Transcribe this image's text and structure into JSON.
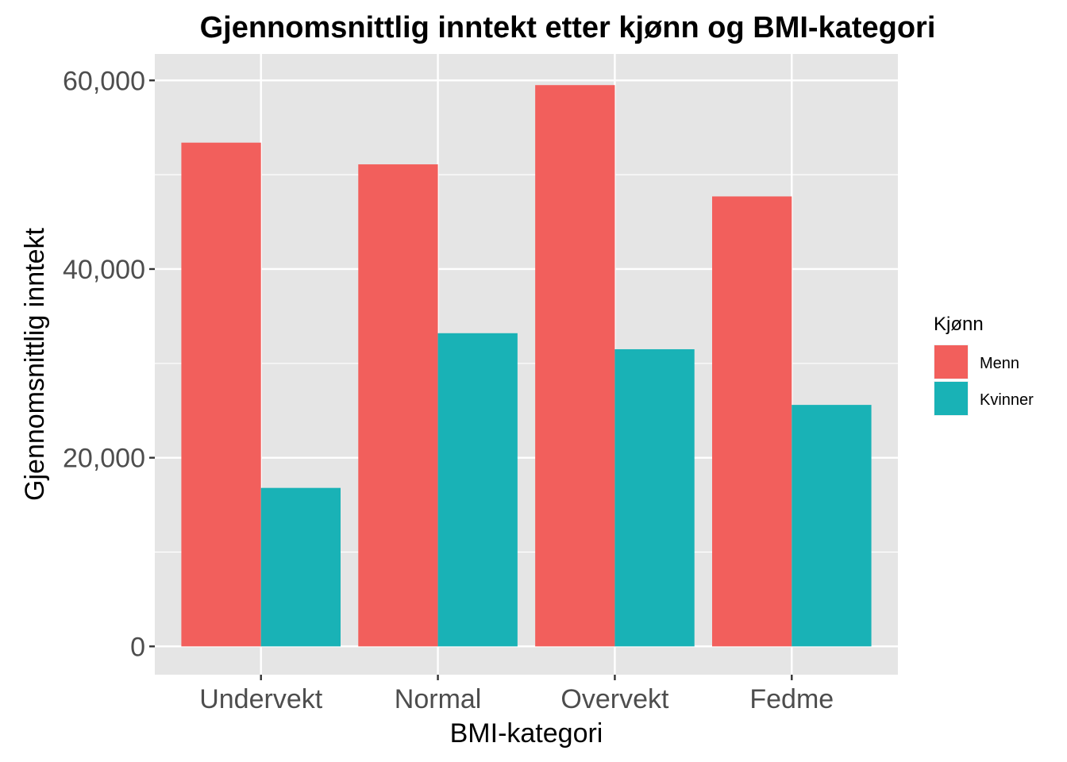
{
  "chart_data": {
    "type": "bar",
    "title": "Gjennomsnittlig inntekt etter kjønn og BMI-kategori",
    "xlabel": "BMI-kategori",
    "ylabel": "Gjennomsnittlig inntekt",
    "categories": [
      "Undervekt",
      "Normal",
      "Overvekt",
      "Fedme"
    ],
    "series": [
      {
        "name": "Menn",
        "color": "#F25F5C",
        "values": [
          53400,
          51100,
          59500,
          47700
        ]
      },
      {
        "name": "Kvinner",
        "color": "#19B2B6",
        "values": [
          16800,
          33200,
          31500,
          25600
        ]
      }
    ],
    "ylim": [
      -3000,
      62800
    ],
    "yticks": [
      0,
      20000,
      40000,
      60000
    ],
    "ytick_labels": [
      "0",
      "20,000",
      "40,000",
      "60,000"
    ],
    "grid": true,
    "panel_background": "#E5E5E5",
    "grid_color": "#FFFFFF",
    "legend": {
      "title": "Kjønn",
      "position": "right",
      "items": [
        "Menn",
        "Kvinner"
      ]
    }
  }
}
